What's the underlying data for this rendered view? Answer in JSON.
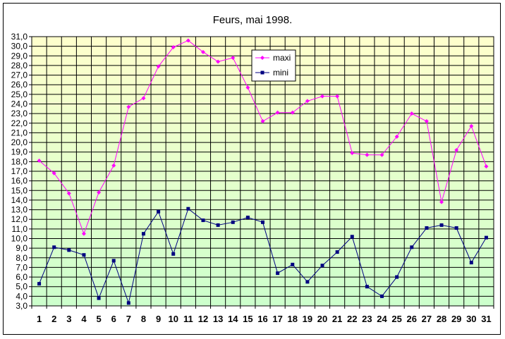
{
  "colors": {
    "maxi": "#ff00ff",
    "mini": "#000080",
    "plot_top": "#ffffcc",
    "plot_bottom": "#ccffcc",
    "grid": "#000000"
  },
  "chart_data": {
    "type": "line",
    "title": "Feurs, mai 1998.",
    "xlabel": "",
    "ylabel": "",
    "x": [
      1,
      2,
      3,
      4,
      5,
      6,
      7,
      8,
      9,
      10,
      11,
      12,
      13,
      14,
      15,
      16,
      17,
      18,
      19,
      20,
      21,
      22,
      23,
      24,
      25,
      26,
      27,
      28,
      29,
      30,
      31
    ],
    "ylim": [
      3.0,
      31.0
    ],
    "ystep": 1.0,
    "yticks": [
      "3,0",
      "4,0",
      "5,0",
      "6,0",
      "7,0",
      "8,0",
      "9,0",
      "10,0",
      "11,0",
      "12,0",
      "13,0",
      "14,0",
      "15,0",
      "16,0",
      "17,0",
      "18,0",
      "19,0",
      "20,0",
      "21,0",
      "22,0",
      "23,0",
      "24,0",
      "25,0",
      "26,0",
      "27,0",
      "28,0",
      "29,0",
      "30,0",
      "31,0"
    ],
    "xticks": [
      "1",
      "2",
      "3",
      "4",
      "5",
      "6",
      "7",
      "8",
      "9",
      "10",
      "11",
      "12",
      "13",
      "14",
      "15",
      "16",
      "17",
      "18",
      "19",
      "20",
      "21",
      "22",
      "23",
      "24",
      "25",
      "26",
      "27",
      "28",
      "29",
      "30",
      "31"
    ],
    "grid": true,
    "legend_position": "top-center",
    "series": [
      {
        "name": "maxi",
        "marker": "diamond",
        "values": [
          18.1,
          16.8,
          14.7,
          10.5,
          14.8,
          17.6,
          23.7,
          24.6,
          27.9,
          29.9,
          30.6,
          29.4,
          28.4,
          28.8,
          25.7,
          22.2,
          23.1,
          23.1,
          24.3,
          24.8,
          24.8,
          18.9,
          18.7,
          18.7,
          20.6,
          23.0,
          22.2,
          13.8,
          19.2,
          21.7,
          17.5
        ]
      },
      {
        "name": "mini",
        "marker": "square",
        "values": [
          5.3,
          9.1,
          8.8,
          8.3,
          3.8,
          7.7,
          3.3,
          10.5,
          12.8,
          8.4,
          13.1,
          11.9,
          11.4,
          11.7,
          12.2,
          11.7,
          6.4,
          7.3,
          5.5,
          7.2,
          8.6,
          10.2,
          5.0,
          4.0,
          6.0,
          9.1,
          11.1,
          11.4,
          11.1,
          7.5,
          10.1
        ]
      }
    ]
  }
}
